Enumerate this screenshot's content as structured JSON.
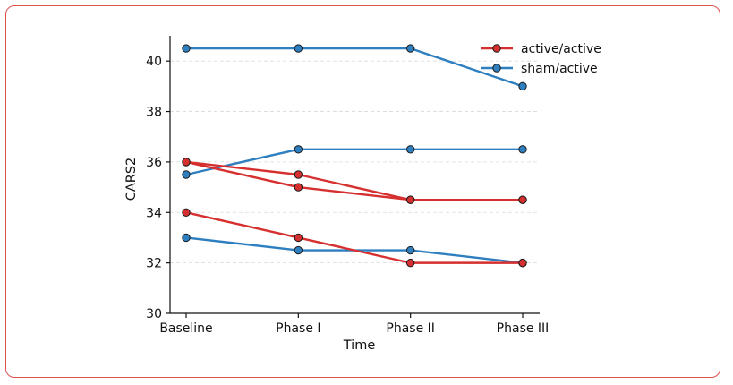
{
  "chart_data": {
    "type": "line",
    "title": "",
    "xlabel": "Time",
    "ylabel": "CARS2",
    "categories": [
      "Baseline",
      "Phase I",
      "Phase II",
      "Phase III"
    ],
    "ylim": [
      30,
      41
    ],
    "yticks": [
      30,
      32,
      34,
      36,
      38,
      40
    ],
    "grid": "horizontal dashed",
    "legend_position": "top-right",
    "groups": [
      {
        "name": "active/active",
        "color": "#d62f2f"
      },
      {
        "name": "sham/active",
        "color": "#2e7fc0"
      }
    ],
    "series": [
      {
        "group": "sham/active",
        "values": [
          40.5,
          40.5,
          40.5,
          39.0
        ]
      },
      {
        "group": "sham/active",
        "values": [
          35.5,
          36.5,
          36.5,
          36.5
        ]
      },
      {
        "group": "sham/active",
        "values": [
          33.0,
          32.5,
          32.5,
          32.0
        ]
      },
      {
        "group": "active/active",
        "values": [
          36.0,
          35.5,
          34.5,
          34.5
        ]
      },
      {
        "group": "active/active",
        "values": [
          36.0,
          35.0,
          34.5,
          34.5
        ]
      },
      {
        "group": "active/active",
        "values": [
          34.0,
          33.0,
          32.0,
          32.0
        ]
      }
    ]
  }
}
